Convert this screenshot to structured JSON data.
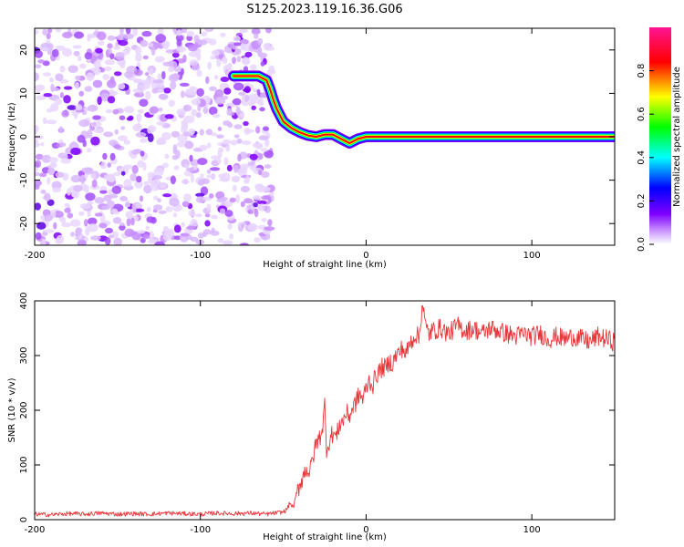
{
  "figure": {
    "title": "S125.2023.119.16.36.G06"
  },
  "chart_data": [
    {
      "type": "heatmap",
      "title": "",
      "xlabel": "Height of straight line (km)",
      "ylabel": "Frequency (Hz)",
      "xlim": [
        -200,
        150
      ],
      "ylim": [
        -25,
        25
      ],
      "xticks": [
        -200,
        -100,
        0,
        100
      ],
      "yticks": [
        20,
        10,
        0,
        -10,
        -20
      ],
      "colorbar": {
        "label": "Normalized spectral amplitude",
        "range": [
          0.0,
          1.0
        ],
        "ticks": [
          "0.0",
          "0.2",
          "0.4",
          "0.6",
          "0.8"
        ],
        "colors": [
          "#ffffff",
          "#7f00ff",
          "#0000ff",
          "#00ffff",
          "#00ff00",
          "#ffff00",
          "#ff0000",
          "#ff1493"
        ]
      },
      "noise_region_x": [
        -200,
        -60
      ],
      "ridge": {
        "x": [
          -80,
          -65,
          -60,
          -58,
          -56,
          -54,
          -52,
          -50,
          -45,
          -40,
          -35,
          -30,
          -25,
          -20,
          -15,
          -10,
          -5,
          0,
          10,
          20,
          50,
          100,
          150
        ],
        "y": [
          14,
          14,
          13,
          11,
          8.5,
          6.5,
          5,
          3.5,
          2,
          1,
          0.3,
          0,
          0.5,
          0.5,
          -0.5,
          -1.5,
          -0.5,
          0,
          0,
          0,
          0,
          0,
          0
        ]
      }
    },
    {
      "type": "line",
      "title": "",
      "xlabel": "Height of straight line (km)",
      "ylabel": "SNR (10 * v/v)",
      "xlim": [
        -200,
        150
      ],
      "ylim": [
        0,
        400
      ],
      "xticks": [
        -200,
        -100,
        0,
        100
      ],
      "yticks": [
        0,
        100,
        200,
        300,
        400
      ],
      "series": [
        {
          "color": "#e8373b",
          "x": [
            -200,
            -190,
            -180,
            -170,
            -160,
            -150,
            -140,
            -130,
            -120,
            -110,
            -100,
            -90,
            -80,
            -70,
            -60,
            -55,
            -50,
            -48,
            -46,
            -44,
            -42,
            -40,
            -38,
            -36,
            -34,
            -32,
            -30,
            -28,
            -26,
            -25,
            -24,
            -22,
            -20,
            -18,
            -16,
            -14,
            -12,
            -10,
            -8,
            -6,
            -4,
            -2,
            0,
            2,
            4,
            6,
            8,
            10,
            12,
            14,
            16,
            18,
            20,
            22,
            24,
            26,
            28,
            30,
            32,
            34,
            36,
            38,
            40,
            45,
            50,
            55,
            60,
            65,
            70,
            75,
            80,
            85,
            90,
            95,
            100,
            105,
            110,
            115,
            120,
            125,
            130,
            135,
            140,
            145,
            150
          ],
          "y": [
            10,
            9,
            11,
            10,
            12,
            10,
            11,
            10,
            12,
            11,
            10,
            12,
            11,
            12,
            10,
            12,
            14,
            18,
            30,
            22,
            45,
            65,
            80,
            95,
            85,
            115,
            140,
            150,
            175,
            210,
            130,
            145,
            160,
            150,
            175,
            180,
            195,
            190,
            205,
            215,
            230,
            220,
            240,
            255,
            245,
            265,
            270,
            280,
            275,
            290,
            285,
            300,
            305,
            315,
            300,
            320,
            330,
            340,
            330,
            400,
            350,
            340,
            345,
            350,
            340,
            355,
            345,
            350,
            340,
            350,
            345,
            340,
            335,
            340,
            335,
            340,
            330,
            335,
            330,
            335,
            330,
            325,
            335,
            330,
            325
          ]
        }
      ]
    }
  ]
}
